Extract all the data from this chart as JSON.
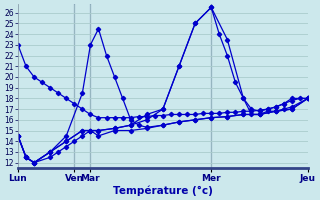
{
  "background_color": "#cce8ec",
  "grid_color": "#aacccc",
  "line_color": "#0000cc",
  "xlabel": "Température (°c)",
  "ylabel_ticks": [
    12,
    13,
    14,
    15,
    16,
    17,
    18,
    19,
    20,
    21,
    22,
    23,
    24,
    25,
    26
  ],
  "ylim": [
    11.5,
    26.8
  ],
  "xlim": [
    0,
    18
  ],
  "day_labels": [
    "Lun",
    "Ven",
    "Mar",
    "Mer",
    "Jeu"
  ],
  "day_x": [
    0,
    3.5,
    4.5,
    12,
    18
  ],
  "vlines": [
    3.5,
    4.5,
    12,
    18
  ],
  "series": [
    {
      "x": [
        0,
        0.5,
        1,
        1.5,
        2,
        2.5,
        3,
        3.5,
        4,
        4.5,
        5,
        5.5,
        6,
        6.5,
        7,
        7.5,
        8,
        8.5,
        9,
        9.5,
        10,
        10.5,
        11,
        11.5,
        12,
        12.5,
        13,
        13.5,
        14,
        14.5,
        15,
        15.5,
        16,
        16.5,
        17,
        17.5,
        18
      ],
      "y": [
        23,
        21,
        20,
        19.5,
        19,
        18.5,
        18,
        17.5,
        17,
        16.5,
        16.2,
        16.2,
        16.2,
        16.2,
        16.2,
        16.3,
        16.3,
        16.4,
        16.4,
        16.5,
        16.5,
        16.5,
        16.5,
        16.6,
        16.6,
        16.6,
        16.7,
        16.7,
        16.8,
        16.8,
        16.9,
        17,
        17.2,
        17.5,
        17.8,
        18,
        18
      ]
    },
    {
      "x": [
        0,
        0.5,
        1,
        2,
        2.5,
        3,
        3.5,
        4,
        4.5,
        5,
        6,
        7,
        8,
        9,
        10,
        11,
        12,
        13,
        14,
        15,
        16,
        17,
        18
      ],
      "y": [
        14.5,
        12.5,
        12,
        12.5,
        13,
        13.5,
        14,
        14.5,
        15,
        14.5,
        15,
        15,
        15.2,
        15.5,
        15.8,
        16,
        16.2,
        16.3,
        16.5,
        16.5,
        16.8,
        17,
        18
      ]
    },
    {
      "x": [
        0,
        0.5,
        1,
        2,
        3,
        4,
        4.5,
        5,
        5.5,
        6,
        6.5,
        7,
        7.5,
        8,
        9,
        10,
        11,
        12,
        13,
        14,
        15,
        16,
        17,
        18
      ],
      "y": [
        14.5,
        12.5,
        12,
        13,
        14.5,
        18.5,
        23,
        24.5,
        22,
        20,
        18,
        16,
        15.5,
        15.3,
        15.5,
        15.8,
        16,
        16.2,
        16.3,
        16.5,
        16.5,
        16.8,
        17,
        18
      ]
    },
    {
      "x": [
        0,
        0.5,
        1,
        2,
        3,
        4,
        4.5,
        5,
        6,
        7,
        8,
        9,
        10,
        11,
        12,
        13,
        14,
        14.5,
        15,
        15.5,
        16,
        16.5,
        17,
        18
      ],
      "y": [
        14.5,
        12.5,
        12,
        13,
        14,
        15,
        15,
        15,
        15.2,
        15.5,
        16,
        17,
        21,
        25,
        26.5,
        23.5,
        18,
        16.5,
        16.5,
        16.8,
        16.8,
        17,
        17.2,
        18
      ]
    },
    {
      "x": [
        0,
        0.5,
        1,
        2,
        3,
        4,
        4.5,
        5,
        6,
        7,
        8,
        9,
        10,
        11,
        12,
        12.5,
        13,
        13.5,
        14,
        14.5,
        15,
        15.5,
        16,
        16.5,
        17,
        18
      ],
      "y": [
        14.5,
        12.5,
        12,
        13,
        14,
        15,
        15,
        15,
        15.2,
        15.5,
        16.5,
        17,
        21,
        25,
        26.5,
        24,
        22,
        19.5,
        18,
        17,
        16.8,
        17,
        17.2,
        17.5,
        18,
        18
      ]
    }
  ]
}
